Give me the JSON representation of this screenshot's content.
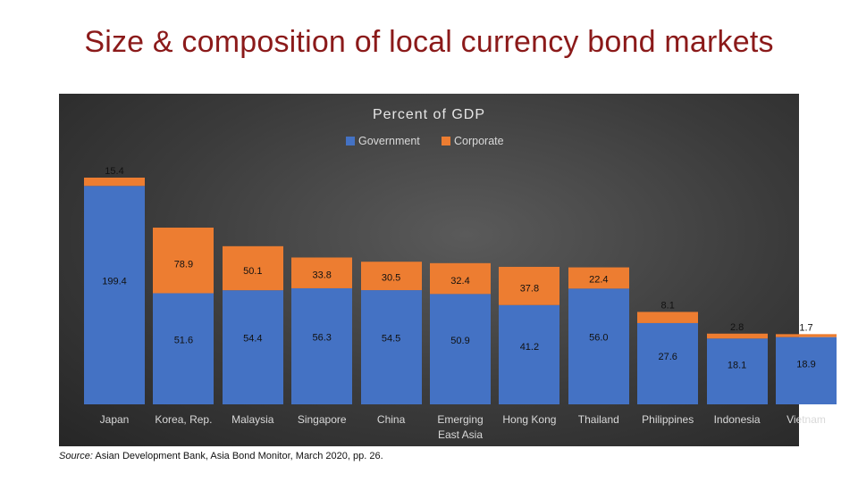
{
  "slide": {
    "title": "Size & composition of local currency bond markets",
    "source_label": "Source:",
    "source_text": "Asian Development Bank, Asia Bond Monitor, March 2020, pp. 26."
  },
  "colors": {
    "government": "#4472c4",
    "corporate": "#ed7d31",
    "text": "#d9d9d9"
  },
  "chart_data": {
    "type": "bar",
    "stacked": true,
    "title": "Percent of GDP",
    "legend_position": "top",
    "categories": [
      "Japan",
      "Korea, Rep.",
      "Malaysia",
      "Singapore",
      "China",
      "Emerging East Asia",
      "Hong Kong",
      "Thailand",
      "Philippines",
      "Indonesia",
      "Vietnam"
    ],
    "category_lines": [
      [
        "Japan"
      ],
      [
        "Korea, Rep."
      ],
      [
        "Malaysia"
      ],
      [
        "Singapore"
      ],
      [
        "China"
      ],
      [
        "Emerging",
        "East Asia"
      ],
      [
        "Hong Kong"
      ],
      [
        "Thailand"
      ],
      [
        "Philippines"
      ],
      [
        "Indonesia"
      ],
      [
        "Vietnam"
      ]
    ],
    "series": [
      {
        "name": "Government",
        "values": [
          199.4,
          51.6,
          54.4,
          56.3,
          54.5,
          50.9,
          41.2,
          56.0,
          27.6,
          18.1,
          18.9
        ]
      },
      {
        "name": "Corporate",
        "values": [
          15.4,
          78.9,
          50.1,
          33.8,
          30.5,
          32.4,
          37.8,
          22.4,
          8.1,
          2.8,
          1.7
        ]
      }
    ],
    "value_labels": {
      "Government": [
        "199.4",
        "51.6",
        "54.4",
        "56.3",
        "54.5",
        "50.9",
        "41.2",
        "56.0",
        "27.6",
        "18.1",
        "18.9"
      ],
      "Corporate": [
        "15.4",
        "78.9",
        "50.1",
        "33.8",
        "30.5",
        "32.4",
        "37.8",
        "22.4",
        "8.1",
        "2.8",
        "1.7"
      ]
    },
    "grid": false
  }
}
